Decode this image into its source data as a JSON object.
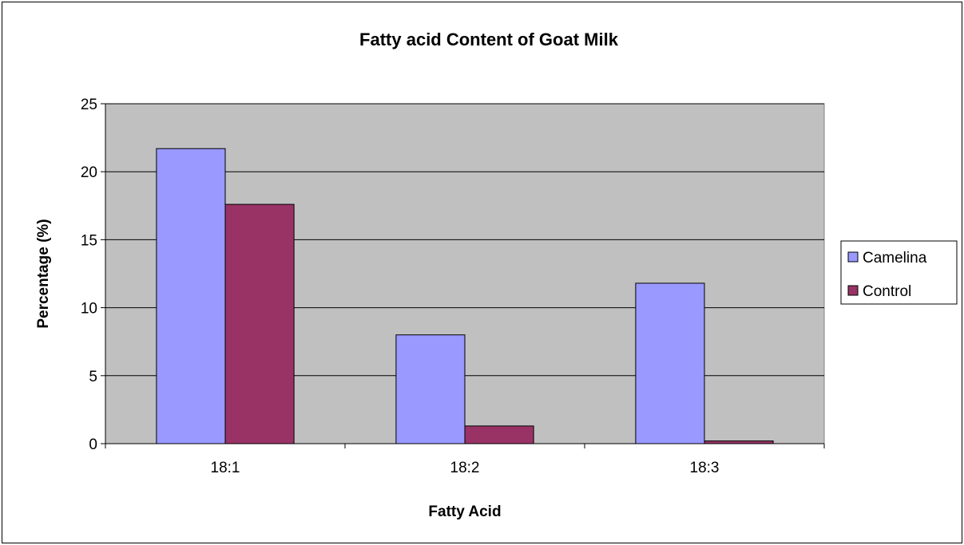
{
  "chart_data": {
    "type": "bar",
    "title": "Fatty acid Content of Goat Milk",
    "xlabel": "Fatty Acid",
    "ylabel": "Percentage (%)",
    "categories": [
      "18:1",
      "18:2",
      "18:3"
    ],
    "series": [
      {
        "name": "Camelina",
        "values": [
          21.7,
          8.0,
          11.8
        ],
        "color": "#9999ff"
      },
      {
        "name": "Control",
        "values": [
          17.6,
          1.3,
          0.2
        ],
        "color": "#993366"
      }
    ],
    "ylim": [
      0,
      25
    ],
    "yticks": [
      0,
      5,
      10,
      15,
      20,
      25
    ],
    "grid": true,
    "legend_position": "right",
    "plot_background": "#c0c0c0"
  }
}
